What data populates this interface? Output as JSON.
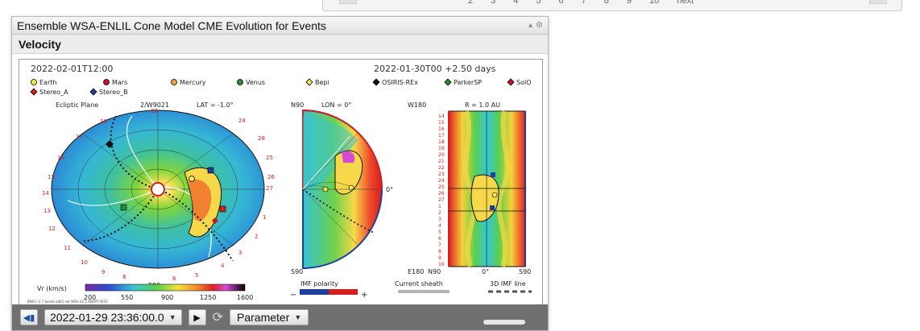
{
  "window": {
    "title": "Ensemble WSA-ENLIL Cone Model CME Evolution for Events"
  },
  "section": {
    "title": "Velocity"
  },
  "bg_pager": {
    "items": [
      "2",
      "3",
      "4",
      "5",
      "6",
      "7",
      "8",
      "9",
      "10",
      "next"
    ]
  },
  "plot": {
    "left_time": "2022-02-01T12:00",
    "right_time": "2022-01-30T00 +2.50 days",
    "legend": [
      {
        "label": "Earth",
        "color": "#f3e94c",
        "shape": "circle"
      },
      {
        "label": "Mars",
        "color": "#c8102e",
        "shape": "circle"
      },
      {
        "label": "Mercury",
        "color": "#f0a040",
        "shape": "circle"
      },
      {
        "label": "Venus",
        "color": "#2c8a3c",
        "shape": "circle"
      },
      {
        "label": "Bepi",
        "color": "#f3e94c",
        "shape": "diamond"
      },
      {
        "label": "OSIRIS-REx",
        "color": "#111111",
        "shape": "diamond"
      },
      {
        "label": "ParkerSP",
        "color": "#2c8a3c",
        "shape": "diamond"
      },
      {
        "label": "SolO",
        "color": "#c8102e",
        "shape": "diamond"
      },
      {
        "label": "Stereo_A",
        "color": "#d52020",
        "shape": "diamond"
      },
      {
        "label": "Stereo_B",
        "color": "#1e3fa0",
        "shape": "diamond"
      }
    ],
    "ecliptic_label": "Ecliptic Plane",
    "ecliptic_sub": "2/W9021",
    "lat_label": "LAT = -1.0°",
    "n90_label": "N90",
    "lon_label": "LON = 0°",
    "w180_label": "W180",
    "r_label": "R = 1.0 AU",
    "zero_deg": "0°",
    "s90_label": "S90",
    "e90_label": "E90",
    "e180_label": "E180",
    "e180_n90": "N90",
    "bottom_zero": "0°",
    "bottom_s90": "S90",
    "side_27": "27",
    "ring_numbers": [
      "20",
      "18",
      "17",
      "16",
      "15",
      "14",
      "13",
      "12",
      "11",
      "10",
      "9",
      "8",
      "6",
      "5",
      "4",
      "3",
      "2",
      "1",
      "28",
      "24",
      "25",
      "26"
    ],
    "scale_title": "Vr (km/s)",
    "scale_ticks": [
      "200",
      "550",
      "900",
      "1250",
      "1600"
    ],
    "imf_label": "IMF polarity",
    "imf_minus": "−",
    "imf_plus": "+",
    "sheath_label": "Current sheath",
    "imf3d_label": "3D IMF line",
    "footnote": "EN65~2.7 bonds-a4b1-set WSA.V2.2 ADAPT-3553"
  },
  "toolbar": {
    "date_value": "2022-01-29 23:36:00.0",
    "parameter_label": "Parameter",
    "first_icon": "skip-back-icon",
    "play_icon": "play-icon",
    "loop_icon": "loop-icon"
  }
}
